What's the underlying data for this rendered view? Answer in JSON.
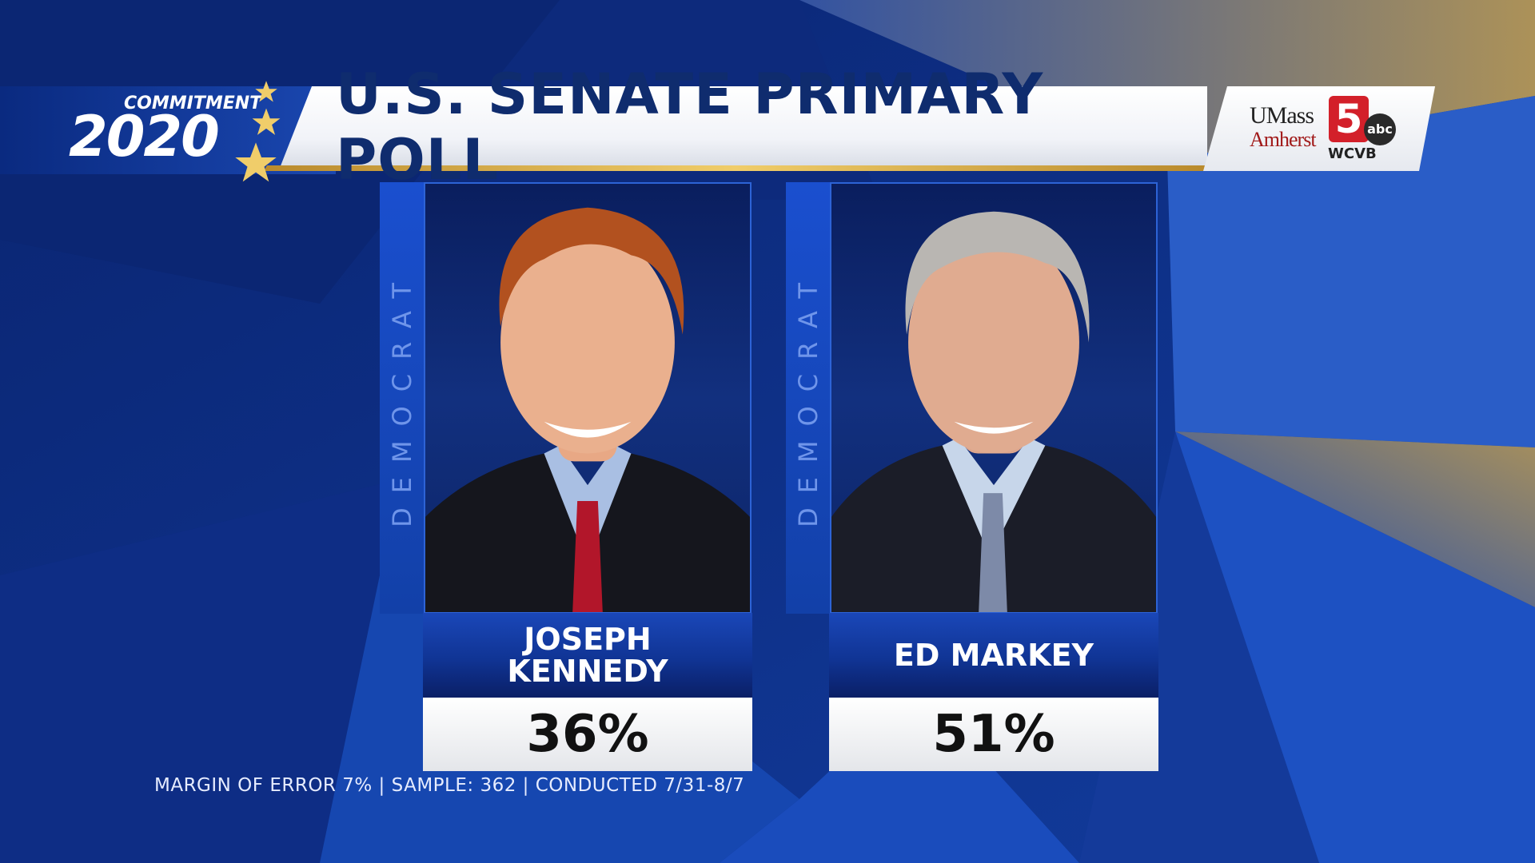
{
  "header": {
    "title": "U.S. SENATE PRIMARY POLL",
    "logo_commitment": "COMMITMENT",
    "logo_year": "2020",
    "sponsor_line1": "UMass",
    "sponsor_line2": "Amherst",
    "channel_number": "5",
    "network": "abc",
    "station": "WCVB"
  },
  "candidates": [
    {
      "party": "DEMOCRAT",
      "name_line1": "JOSEPH",
      "name_line2": "KENNEDY",
      "percent": "36%"
    },
    {
      "party": "DEMOCRAT",
      "name_line1": "ED MARKEY",
      "name_line2": "",
      "percent": "51%"
    }
  ],
  "footnote": "MARGIN OF ERROR 7% | SAMPLE: 362 | CONDUCTED 7/31-8/7",
  "colors": {
    "background": "#0c2a78",
    "title_text": "#0f2c6e",
    "gold_accent": "#f0cd6a",
    "party_bar": "#1a4fcf"
  }
}
